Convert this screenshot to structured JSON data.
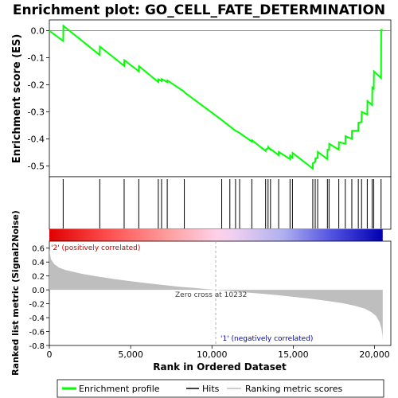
{
  "chart_data": {
    "type": "line",
    "title": "Enrichment plot: GO_CELL_FATE_DETERMINATION",
    "xlabel": "Rank in Ordered Dataset",
    "top_panel": {
      "ylabel": "Enrichment score (ES)",
      "ylim": [
        -0.54,
        0.04
      ],
      "yticks": [
        "0.0",
        "-0.1",
        "-0.2",
        "-0.3",
        "-0.4",
        "-0.5"
      ],
      "line_color": "#00ff00",
      "es_points": [
        [
          0,
          0.0
        ],
        [
          850,
          -0.038
        ],
        [
          860,
          0.018
        ],
        [
          3100,
          -0.09
        ],
        [
          3110,
          -0.059
        ],
        [
          4600,
          -0.13
        ],
        [
          4610,
          -0.109
        ],
        [
          5500,
          -0.15
        ],
        [
          5510,
          -0.131
        ],
        [
          6700,
          -0.19
        ],
        [
          6710,
          -0.18
        ],
        [
          6900,
          -0.186
        ],
        [
          6910,
          -0.179
        ],
        [
          7250,
          -0.19
        ],
        [
          7260,
          -0.184
        ],
        [
          8300,
          -0.226
        ],
        [
          8310,
          -0.228
        ],
        [
          10600,
          -0.33
        ],
        [
          11100,
          -0.354
        ],
        [
          11450,
          -0.37
        ],
        [
          11700,
          -0.378
        ],
        [
          12450,
          -0.41
        ],
        [
          12460,
          -0.405
        ],
        [
          13300,
          -0.445
        ],
        [
          13310,
          -0.44
        ],
        [
          13450,
          -0.435
        ],
        [
          13460,
          -0.43
        ],
        [
          13600,
          -0.44
        ],
        [
          13610,
          -0.438
        ],
        [
          14100,
          -0.46
        ],
        [
          14110,
          -0.448
        ],
        [
          14800,
          -0.475
        ],
        [
          14810,
          -0.462
        ],
        [
          14950,
          -0.47
        ],
        [
          14960,
          -0.452
        ],
        [
          16200,
          -0.51
        ],
        [
          16210,
          -0.49
        ],
        [
          16350,
          -0.485
        ],
        [
          16360,
          -0.472
        ],
        [
          16500,
          -0.47
        ],
        [
          16510,
          -0.448
        ],
        [
          17100,
          -0.475
        ],
        [
          17110,
          -0.44
        ],
        [
          17200,
          -0.44
        ],
        [
          17210,
          -0.418
        ],
        [
          17800,
          -0.44
        ],
        [
          17810,
          -0.412
        ],
        [
          18200,
          -0.418
        ],
        [
          18210,
          -0.39
        ],
        [
          18600,
          -0.4
        ],
        [
          18610,
          -0.37
        ],
        [
          19000,
          -0.37
        ],
        [
          19010,
          -0.34
        ],
        [
          19200,
          -0.338
        ],
        [
          19210,
          -0.3
        ],
        [
          19550,
          -0.31
        ],
        [
          19560,
          -0.26
        ],
        [
          19850,
          -0.275
        ],
        [
          19860,
          -0.21
        ],
        [
          19950,
          -0.215
        ],
        [
          19960,
          -0.15
        ],
        [
          20400,
          -0.175
        ],
        [
          20410,
          0.003
        ],
        [
          20500,
          0.003
        ]
      ]
    },
    "hits_panel": {
      "hit_ranks": [
        850,
        3100,
        4600,
        5500,
        6700,
        6900,
        7250,
        8300,
        10600,
        11100,
        11450,
        11700,
        12450,
        13300,
        13450,
        13600,
        14100,
        14800,
        14950,
        16200,
        16350,
        16500,
        17100,
        17200,
        17800,
        18200,
        18600,
        19000,
        19200,
        19550,
        19850,
        19950,
        20400
      ]
    },
    "metric_panel": {
      "ylabel": "Ranked list metric (Signal2Noise)",
      "ylim": [
        -0.8,
        0.7
      ],
      "yticks": [
        "0.6",
        "0.4",
        "0.2",
        "0.0",
        "-0.2",
        "-0.4",
        "-0.6",
        "-0.8"
      ],
      "zero_cross_label": "Zero cross at 10232",
      "zero_cross": 10232,
      "pos_label": "'2' (positively correlated)",
      "neg_label": "'1' (negatively correlated)",
      "pos_color": "#cc0000",
      "neg_color": "#0000cc",
      "fill_color": "#bebebe",
      "metric_points": [
        [
          0,
          0.58
        ],
        [
          100,
          0.44
        ],
        [
          300,
          0.37
        ],
        [
          600,
          0.32
        ],
        [
          1000,
          0.285
        ],
        [
          2000,
          0.23
        ],
        [
          3000,
          0.19
        ],
        [
          4000,
          0.155
        ],
        [
          5000,
          0.125
        ],
        [
          6000,
          0.095
        ],
        [
          7000,
          0.07
        ],
        [
          8000,
          0.045
        ],
        [
          9000,
          0.025
        ],
        [
          10232,
          0.0
        ],
        [
          11000,
          -0.015
        ],
        [
          12000,
          -0.035
        ],
        [
          13000,
          -0.055
        ],
        [
          14000,
          -0.075
        ],
        [
          15000,
          -0.1
        ],
        [
          16000,
          -0.125
        ],
        [
          17000,
          -0.155
        ],
        [
          18000,
          -0.19
        ],
        [
          18800,
          -0.23
        ],
        [
          19400,
          -0.27
        ],
        [
          19800,
          -0.32
        ],
        [
          20100,
          -0.38
        ],
        [
          20300,
          -0.46
        ],
        [
          20420,
          -0.56
        ],
        [
          20480,
          -0.65
        ],
        [
          20500,
          -0.72
        ]
      ]
    },
    "x_axis": {
      "xlim": [
        0,
        21000
      ],
      "xticks": [
        "0",
        "5,000",
        "10,000",
        "15,000",
        "20,000"
      ]
    },
    "legend": {
      "entries": [
        {
          "label": "Enrichment profile",
          "color": "#00ff00"
        },
        {
          "label": "Hits",
          "color": "#000000"
        },
        {
          "label": "Ranking metric scores",
          "color": "#bebebe"
        }
      ]
    }
  }
}
